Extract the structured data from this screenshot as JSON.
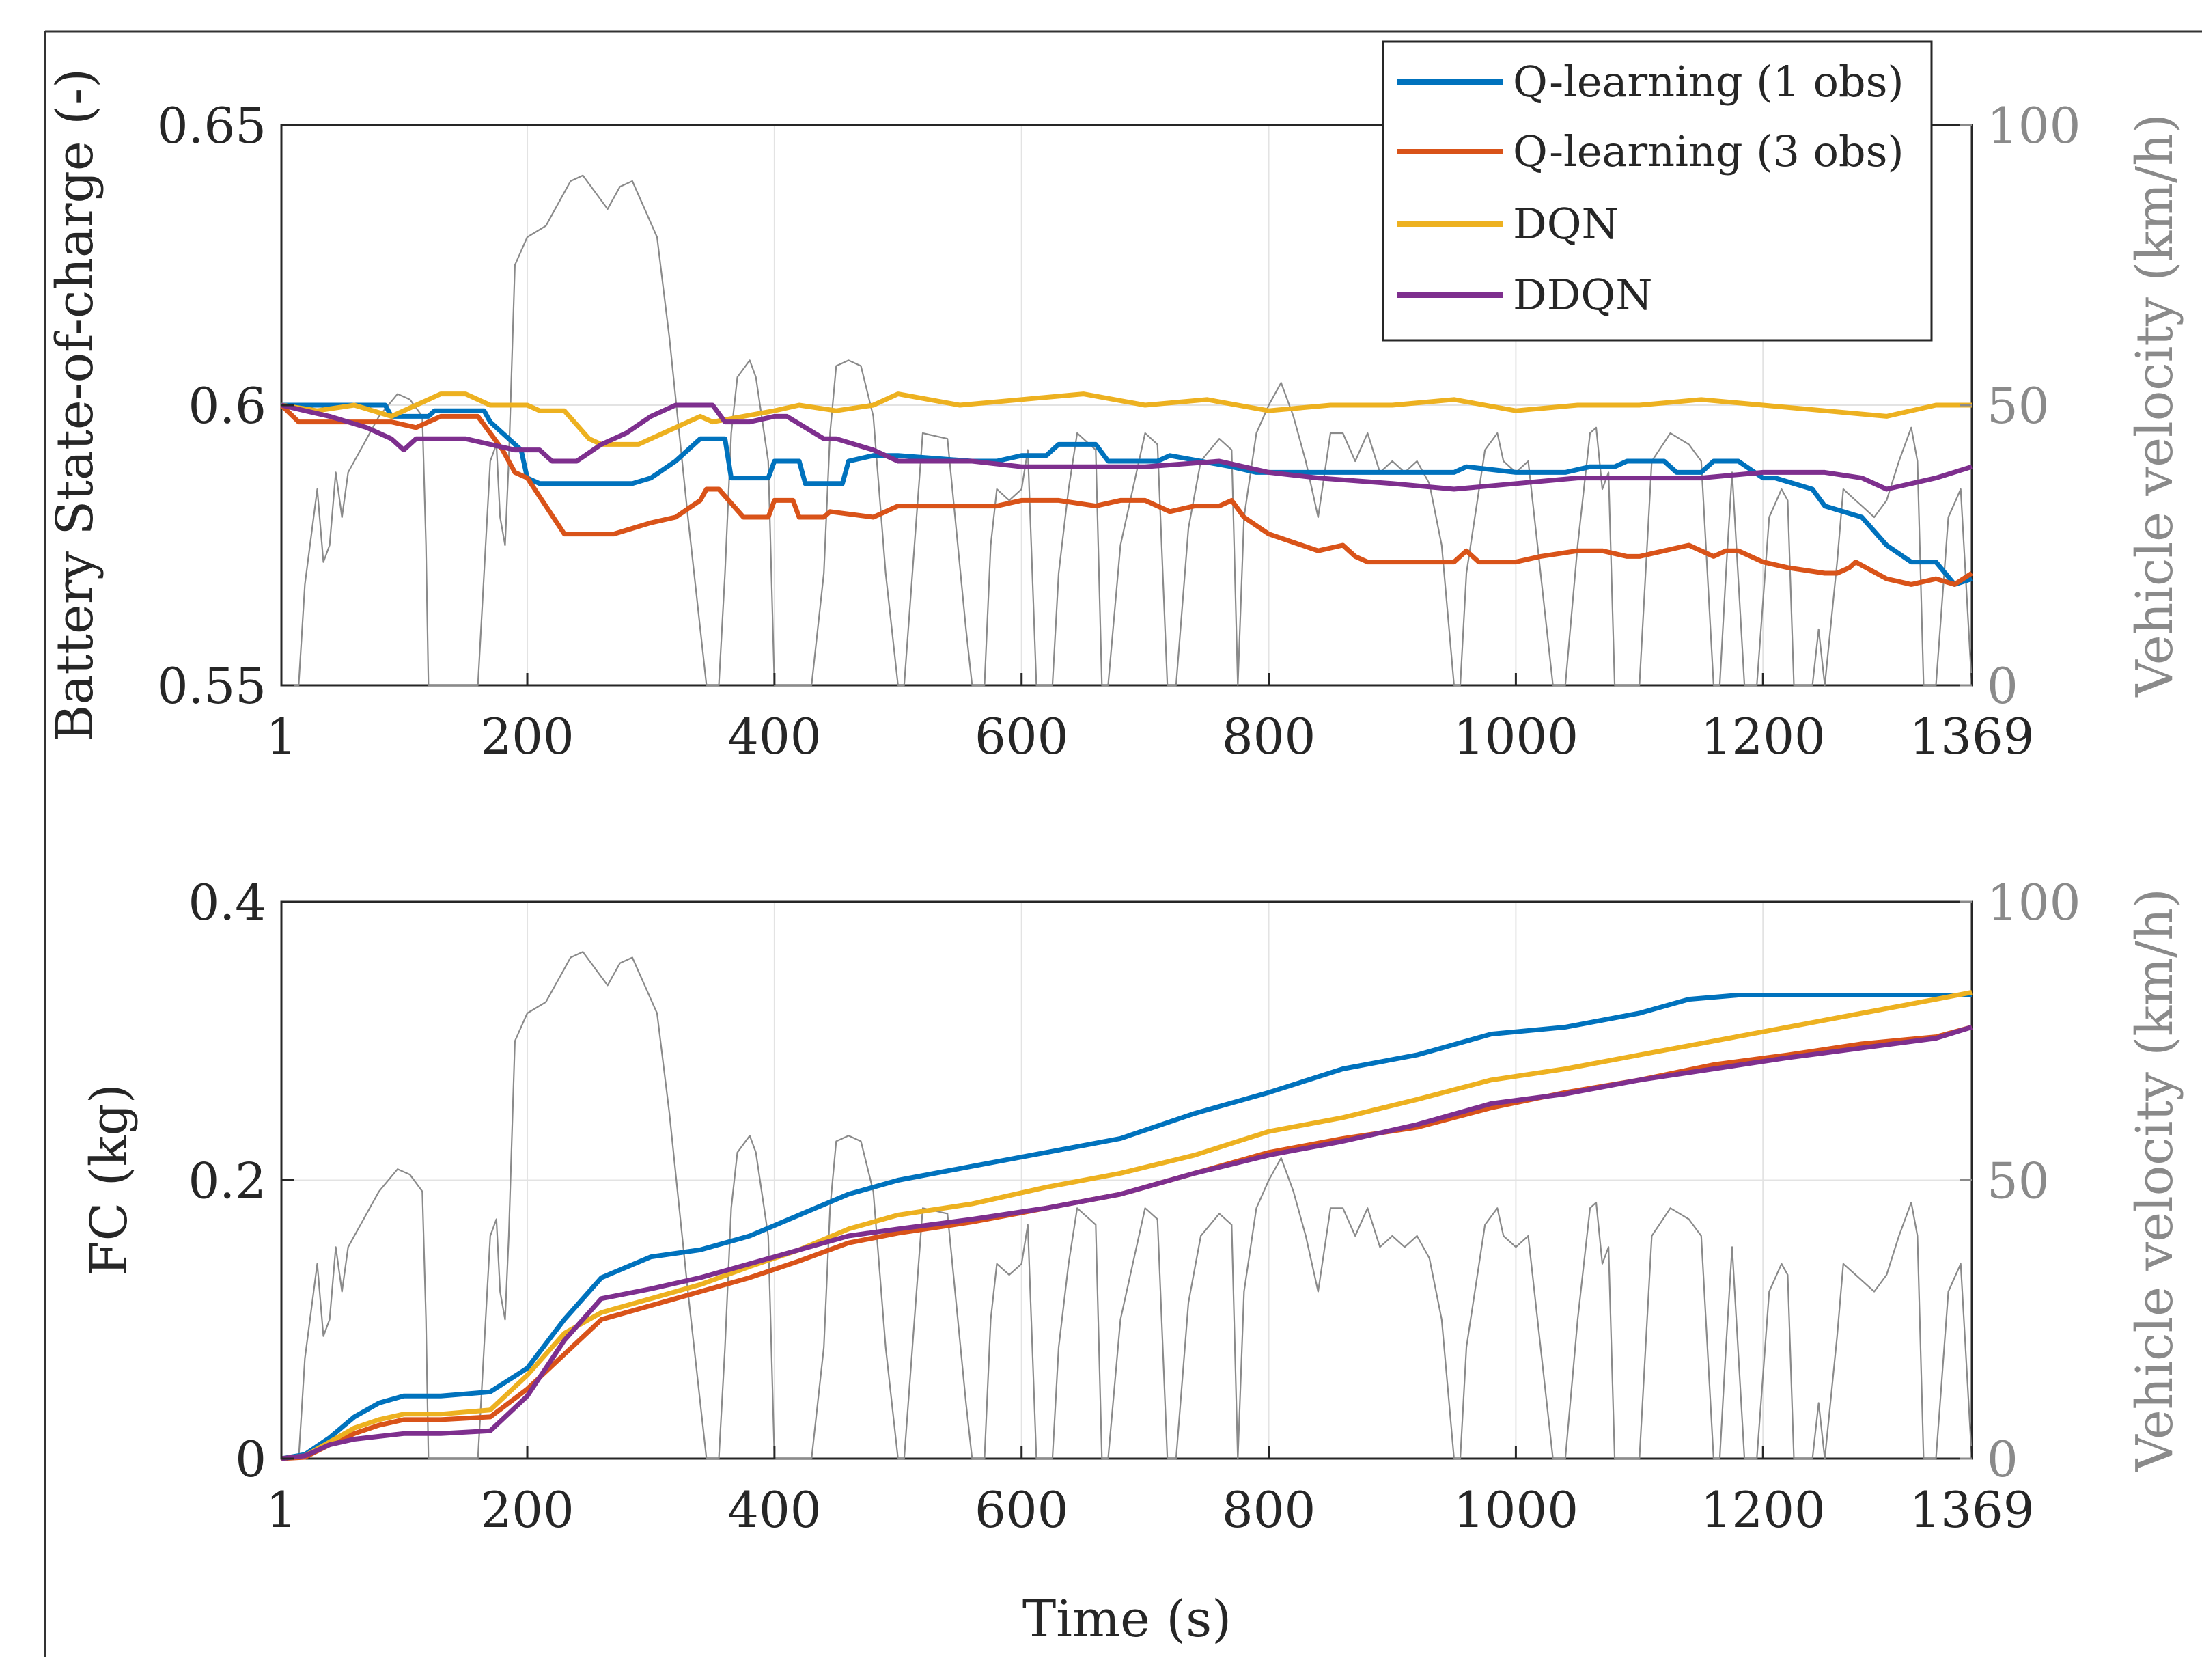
{
  "chart_data": [
    {
      "type": "line",
      "panel": "top",
      "ylabel": "Battery State-of-charge (-)",
      "ylabel_right": "Vehicle velocity (km/h)",
      "xlabel": "",
      "xlim": [
        1,
        1369
      ],
      "ylim": [
        0.55,
        0.65
      ],
      "ylim_right": [
        0,
        100
      ],
      "xticks": [
        "1",
        "200",
        "400",
        "600",
        "800",
        "1000",
        "1200",
        "1369"
      ],
      "xtick_values": [
        1,
        200,
        400,
        600,
        800,
        1000,
        1200,
        1369
      ],
      "yticks": [
        "0.55",
        "0.6",
        "0.65"
      ],
      "ytick_values": [
        0.55,
        0.6,
        0.65
      ],
      "yticks_right": [
        "0",
        "50",
        "100"
      ],
      "ytick_right_values": [
        0,
        50,
        100
      ],
      "grid": true,
      "legend_position": "top-right",
      "series": [
        {
          "name": "Q-learning (1 obs)",
          "color": "#0072BD",
          "x": [
            1,
            20,
            30,
            85,
            90,
            120,
            125,
            165,
            170,
            195,
            200,
            210,
            260,
            285,
            300,
            320,
            340,
            360,
            365,
            395,
            400,
            420,
            425,
            455,
            460,
            480,
            500,
            560,
            580,
            600,
            620,
            630,
            660,
            670,
            710,
            720,
            770,
            790,
            860,
            950,
            960,
            1000,
            1040,
            1060,
            1080,
            1090,
            1120,
            1130,
            1150,
            1160,
            1180,
            1200,
            1210,
            1240,
            1250,
            1280,
            1300,
            1320,
            1340,
            1355,
            1369
          ],
          "y": [
            0.6,
            0.6,
            0.6,
            0.6,
            0.598,
            0.598,
            0.599,
            0.599,
            0.597,
            0.592,
            0.587,
            0.586,
            0.586,
            0.586,
            0.587,
            0.59,
            0.594,
            0.594,
            0.587,
            0.587,
            0.59,
            0.59,
            0.586,
            0.586,
            0.59,
            0.591,
            0.591,
            0.59,
            0.59,
            0.591,
            0.591,
            0.593,
            0.593,
            0.59,
            0.59,
            0.591,
            0.589,
            0.588,
            0.588,
            0.588,
            0.589,
            0.588,
            0.588,
            0.589,
            0.589,
            0.59,
            0.59,
            0.588,
            0.588,
            0.59,
            0.59,
            0.587,
            0.587,
            0.585,
            0.582,
            0.58,
            0.575,
            0.572,
            0.572,
            0.568,
            0.569
          ]
        },
        {
          "name": "Q-learning (3 obs)",
          "color": "#D95319",
          "x": [
            1,
            15,
            30,
            60,
            90,
            110,
            130,
            160,
            170,
            180,
            190,
            200,
            215,
            230,
            250,
            270,
            285,
            300,
            320,
            340,
            345,
            355,
            375,
            380,
            395,
            400,
            415,
            420,
            440,
            445,
            480,
            500,
            550,
            580,
            600,
            630,
            660,
            680,
            700,
            720,
            740,
            760,
            770,
            780,
            800,
            840,
            860,
            870,
            880,
            900,
            950,
            960,
            970,
            1000,
            1020,
            1050,
            1070,
            1090,
            1100,
            1120,
            1140,
            1160,
            1170,
            1180,
            1200,
            1220,
            1250,
            1260,
            1270,
            1275,
            1300,
            1320,
            1340,
            1355,
            1369
          ],
          "y": [
            0.6,
            0.597,
            0.597,
            0.597,
            0.597,
            0.596,
            0.598,
            0.598,
            0.595,
            0.592,
            0.588,
            0.587,
            0.582,
            0.577,
            0.577,
            0.577,
            0.578,
            0.579,
            0.58,
            0.583,
            0.585,
            0.585,
            0.58,
            0.58,
            0.58,
            0.583,
            0.583,
            0.58,
            0.58,
            0.581,
            0.58,
            0.582,
            0.582,
            0.582,
            0.583,
            0.583,
            0.582,
            0.583,
            0.583,
            0.581,
            0.582,
            0.582,
            0.583,
            0.58,
            0.577,
            0.574,
            0.575,
            0.573,
            0.572,
            0.572,
            0.572,
            0.574,
            0.572,
            0.572,
            0.573,
            0.574,
            0.574,
            0.573,
            0.573,
            0.574,
            0.575,
            0.573,
            0.574,
            0.574,
            0.572,
            0.571,
            0.57,
            0.57,
            0.571,
            0.572,
            0.569,
            0.568,
            0.569,
            0.568,
            0.57
          ]
        },
        {
          "name": "DQN",
          "color": "#EDB120",
          "x": [
            1,
            30,
            60,
            90,
            110,
            120,
            130,
            150,
            170,
            200,
            210,
            230,
            250,
            260,
            270,
            290,
            300,
            320,
            340,
            350,
            400,
            420,
            450,
            480,
            500,
            550,
            600,
            650,
            700,
            750,
            800,
            850,
            900,
            950,
            1000,
            1050,
            1100,
            1150,
            1200,
            1250,
            1300,
            1340,
            1369
          ],
          "y": [
            0.6,
            0.599,
            0.6,
            0.598,
            0.6,
            0.601,
            0.602,
            0.602,
            0.6,
            0.6,
            0.599,
            0.599,
            0.594,
            0.593,
            0.593,
            0.593,
            0.594,
            0.596,
            0.598,
            0.597,
            0.599,
            0.6,
            0.599,
            0.6,
            0.602,
            0.6,
            0.601,
            0.602,
            0.6,
            0.601,
            0.599,
            0.6,
            0.6,
            0.601,
            0.599,
            0.6,
            0.6,
            0.601,
            0.6,
            0.599,
            0.598,
            0.6,
            0.6
          ]
        },
        {
          "name": "DDQN",
          "color": "#7E2F8E",
          "x": [
            1,
            20,
            40,
            70,
            90,
            100,
            110,
            150,
            170,
            190,
            210,
            220,
            240,
            260,
            280,
            300,
            320,
            340,
            350,
            360,
            380,
            400,
            410,
            440,
            450,
            480,
            500,
            520,
            560,
            600,
            650,
            700,
            760,
            800,
            840,
            900,
            950,
            1000,
            1050,
            1100,
            1150,
            1200,
            1250,
            1280,
            1300,
            1320,
            1340,
            1369
          ],
          "y": [
            0.6,
            0.599,
            0.598,
            0.596,
            0.594,
            0.592,
            0.594,
            0.594,
            0.593,
            0.592,
            0.592,
            0.59,
            0.59,
            0.593,
            0.595,
            0.598,
            0.6,
            0.6,
            0.6,
            0.597,
            0.597,
            0.598,
            0.598,
            0.594,
            0.594,
            0.592,
            0.59,
            0.59,
            0.59,
            0.589,
            0.589,
            0.589,
            0.59,
            0.588,
            0.587,
            0.586,
            0.585,
            0.586,
            0.587,
            0.587,
            0.587,
            0.588,
            0.588,
            0.587,
            0.585,
            0.586,
            0.587,
            0.589
          ]
        }
      ]
    },
    {
      "type": "line",
      "panel": "bottom",
      "ylabel": "FC (kg)",
      "ylabel_right": "Vehicle velocity (km/h)",
      "xlabel": "Time (s)",
      "xlim": [
        1,
        1369
      ],
      "ylim": [
        0,
        0.4
      ],
      "ylim_right": [
        0,
        100
      ],
      "xticks": [
        "1",
        "200",
        "400",
        "600",
        "800",
        "1000",
        "1200",
        "1369"
      ],
      "xtick_values": [
        1,
        200,
        400,
        600,
        800,
        1000,
        1200,
        1369
      ],
      "yticks": [
        "0",
        "0.2",
        "0.4"
      ],
      "ytick_values": [
        0,
        0.2,
        0.4
      ],
      "yticks_right": [
        "0",
        "50",
        "100"
      ],
      "ytick_right_values": [
        0,
        50,
        100
      ],
      "grid": true,
      "series": [
        {
          "name": "Q-learning (1 obs)",
          "color": "#0072BD",
          "x": [
            1,
            20,
            40,
            60,
            80,
            100,
            130,
            170,
            200,
            230,
            260,
            300,
            340,
            380,
            420,
            460,
            500,
            560,
            620,
            680,
            740,
            800,
            860,
            920,
            980,
            1040,
            1100,
            1140,
            1180,
            1369
          ],
          "y": [
            0,
            0.003,
            0.015,
            0.03,
            0.04,
            0.045,
            0.045,
            0.048,
            0.065,
            0.1,
            0.13,
            0.145,
            0.15,
            0.16,
            0.175,
            0.19,
            0.2,
            0.21,
            0.22,
            0.23,
            0.248,
            0.263,
            0.28,
            0.29,
            0.305,
            0.31,
            0.32,
            0.33,
            0.333,
            0.333
          ]
        },
        {
          "name": "Q-learning (3 obs)",
          "color": "#D95319",
          "x": [
            1,
            20,
            40,
            60,
            80,
            100,
            130,
            170,
            200,
            230,
            260,
            300,
            340,
            380,
            420,
            460,
            500,
            560,
            620,
            680,
            740,
            800,
            860,
            920,
            980,
            1040,
            1100,
            1160,
            1220,
            1280,
            1340,
            1369
          ],
          "y": [
            0,
            0.001,
            0.01,
            0.018,
            0.024,
            0.028,
            0.028,
            0.03,
            0.05,
            0.075,
            0.1,
            0.11,
            0.12,
            0.13,
            0.142,
            0.155,
            0.162,
            0.17,
            0.18,
            0.19,
            0.205,
            0.22,
            0.23,
            0.238,
            0.252,
            0.263,
            0.272,
            0.283,
            0.29,
            0.298,
            0.303,
            0.31
          ]
        },
        {
          "name": "DQN",
          "color": "#EDB120",
          "x": [
            1,
            20,
            40,
            60,
            80,
            100,
            130,
            170,
            200,
            230,
            260,
            300,
            340,
            380,
            420,
            460,
            500,
            560,
            620,
            680,
            740,
            800,
            860,
            920,
            980,
            1040,
            1100,
            1160,
            1220,
            1280,
            1340,
            1369
          ],
          "y": [
            0,
            0.002,
            0.012,
            0.022,
            0.028,
            0.032,
            0.032,
            0.035,
            0.06,
            0.09,
            0.105,
            0.115,
            0.125,
            0.138,
            0.15,
            0.165,
            0.175,
            0.183,
            0.195,
            0.205,
            0.218,
            0.235,
            0.245,
            0.258,
            0.272,
            0.28,
            0.29,
            0.3,
            0.31,
            0.32,
            0.33,
            0.335
          ]
        },
        {
          "name": "DDQN",
          "color": "#7E2F8E",
          "x": [
            1,
            20,
            40,
            60,
            80,
            100,
            130,
            170,
            200,
            230,
            260,
            300,
            340,
            380,
            420,
            460,
            500,
            560,
            620,
            680,
            740,
            800,
            860,
            920,
            980,
            1040,
            1100,
            1160,
            1220,
            1280,
            1340,
            1369
          ],
          "y": [
            0,
            0.002,
            0.01,
            0.014,
            0.016,
            0.018,
            0.018,
            0.02,
            0.045,
            0.085,
            0.115,
            0.122,
            0.13,
            0.14,
            0.15,
            0.16,
            0.165,
            0.172,
            0.18,
            0.19,
            0.205,
            0.218,
            0.228,
            0.24,
            0.255,
            0.262,
            0.272,
            0.28,
            0.288,
            0.295,
            0.302,
            0.31
          ]
        }
      ]
    }
  ],
  "velocity_profile": {
    "name": "Vehicle velocity",
    "color": "#8a8a8a",
    "unit": "km/h",
    "x": [
      1,
      15,
      20,
      30,
      35,
      40,
      45,
      50,
      55,
      60,
      65,
      70,
      80,
      95,
      105,
      115,
      118,
      120,
      125,
      140,
      155,
      160,
      170,
      175,
      178,
      182,
      185,
      190,
      200,
      215,
      225,
      235,
      245,
      255,
      265,
      275,
      285,
      295,
      305,
      315,
      330,
      340,
      345,
      355,
      360,
      365,
      370,
      380,
      385,
      395,
      400,
      430,
      440,
      445,
      450,
      460,
      470,
      480,
      490,
      500,
      505,
      515,
      520,
      540,
      555,
      560,
      570,
      575,
      580,
      590,
      600,
      605,
      612,
      625,
      630,
      638,
      645,
      660,
      665,
      670,
      680,
      690,
      700,
      710,
      718,
      725,
      735,
      745,
      760,
      770,
      775,
      780,
      790,
      800,
      810,
      820,
      830,
      840,
      850,
      860,
      870,
      880,
      890,
      900,
      910,
      920,
      930,
      940,
      950,
      955,
      960,
      975,
      985,
      990,
      1000,
      1010,
      1020,
      1030,
      1040,
      1050,
      1060,
      1065,
      1070,
      1075,
      1080,
      1090,
      1100,
      1110,
      1125,
      1140,
      1150,
      1160,
      1165,
      1170,
      1175,
      1185,
      1195,
      1205,
      1215,
      1220,
      1225,
      1230,
      1240,
      1245,
      1250,
      1260,
      1265,
      1275,
      1280,
      1290,
      1300,
      1310,
      1320,
      1325,
      1330,
      1340,
      1350,
      1360,
      1369
    ],
    "y": [
      0,
      0,
      18,
      35,
      22,
      25,
      38,
      30,
      38,
      40,
      42,
      44,
      48,
      52,
      51,
      48,
      25,
      0,
      0,
      0,
      0,
      0,
      40,
      43,
      30,
      25,
      40,
      75,
      80,
      82,
      86,
      90,
      91,
      88,
      85,
      89,
      90,
      85,
      80,
      62,
      30,
      10,
      0,
      0,
      20,
      45,
      55,
      58,
      55,
      40,
      0,
      0,
      20,
      45,
      57,
      58,
      57,
      48,
      20,
      0,
      0,
      30,
      45,
      44,
      10,
      0,
      0,
      25,
      35,
      33,
      35,
      42,
      0,
      0,
      20,
      35,
      45,
      42,
      0,
      0,
      25,
      35,
      45,
      43,
      0,
      0,
      28,
      40,
      44,
      42,
      0,
      30,
      45,
      50,
      54,
      48,
      40,
      30,
      45,
      45,
      40,
      45,
      38,
      40,
      38,
      40,
      36,
      25,
      0,
      0,
      20,
      42,
      45,
      40,
      38,
      40,
      20,
      0,
      0,
      25,
      45,
      46,
      35,
      38,
      0,
      0,
      0,
      40,
      45,
      43,
      40,
      0,
      0,
      20,
      38,
      0,
      0,
      30,
      35,
      33,
      0,
      0,
      0,
      10,
      0,
      22,
      35,
      33,
      32,
      30,
      33,
      40,
      46,
      40,
      0,
      0,
      30,
      35,
      0
    ]
  },
  "legend_labels": [
    "Q-learning (1 obs)",
    "Q-learning (3 obs)",
    "DQN",
    "DDQN"
  ]
}
